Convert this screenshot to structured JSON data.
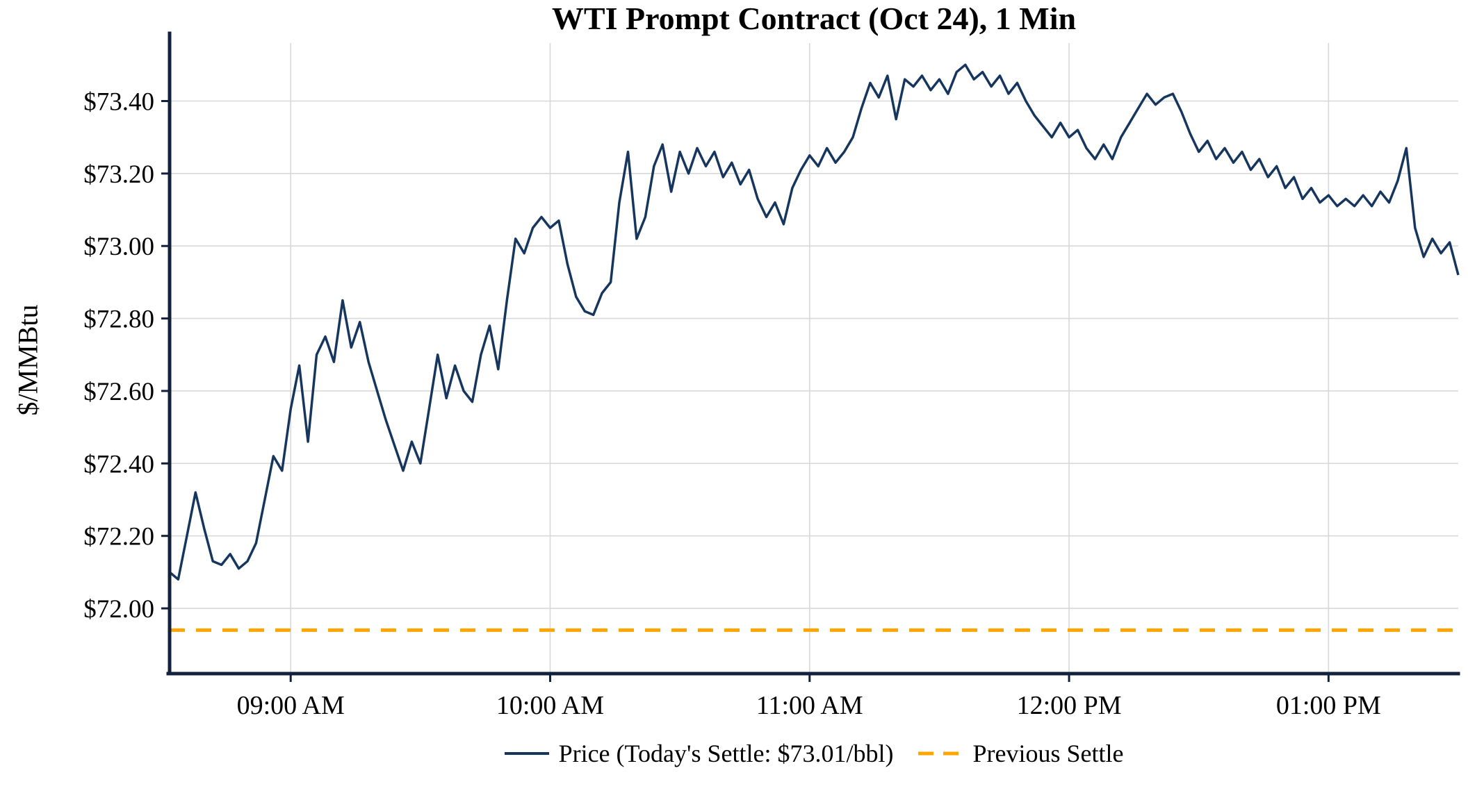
{
  "figure": {
    "title": "WTI Prompt Contract (Oct 24), 1 Min"
  },
  "legend": {
    "price": "Price (Today's Settle: $73.01/bbl)",
    "previous_settle": "Previous Settle"
  },
  "colors": {
    "price_line": "#17365d",
    "previous_settle_line": "#ffa500",
    "grid": "#d8d8d8",
    "axis": "#14213d",
    "text": "#000000",
    "background": "#ffffff"
  },
  "chart_data": {
    "type": "line",
    "title": "WTI Prompt Contract (Oct 24), 1 Min",
    "xlabel": "",
    "ylabel": "$/MMBtu",
    "x_unit": "time-of-day",
    "x_start_time": "08:32",
    "x_step_minutes": 2,
    "x_ticks": [
      {
        "time": "09:00",
        "label": "09:00 AM"
      },
      {
        "time": "10:00",
        "label": "10:00 AM"
      },
      {
        "time": "11:00",
        "label": "11:00 AM"
      },
      {
        "time": "12:00",
        "label": "12:00 PM"
      },
      {
        "time": "13:00",
        "label": "01:00 PM"
      }
    ],
    "y_ticks": [
      {
        "value": 72.0,
        "label": "$72.00"
      },
      {
        "value": 72.2,
        "label": "$72.20"
      },
      {
        "value": 72.4,
        "label": "$72.40"
      },
      {
        "value": 72.6,
        "label": "$72.60"
      },
      {
        "value": 72.8,
        "label": "$72.80"
      },
      {
        "value": 73.0,
        "label": "$73.00"
      },
      {
        "value": 73.2,
        "label": "$73.20"
      },
      {
        "value": 73.4,
        "label": "$73.40"
      }
    ],
    "ylim": [
      71.82,
      73.56
    ],
    "grid": true,
    "legend_position": "bottom",
    "todays_settle": "$73.01/bbl",
    "previous_settle": 71.94,
    "series": [
      {
        "name": "Price (Today's Settle: $73.01/bbl)",
        "type": "line",
        "line_style": "solid",
        "color": "#17365d",
        "values": [
          72.1,
          72.08,
          72.2,
          72.32,
          72.22,
          72.13,
          72.12,
          72.15,
          72.11,
          72.13,
          72.18,
          72.3,
          72.42,
          72.38,
          72.55,
          72.67,
          72.46,
          72.7,
          72.75,
          72.68,
          72.85,
          72.72,
          72.79,
          72.68,
          72.6,
          72.52,
          72.45,
          72.38,
          72.46,
          72.4,
          72.55,
          72.7,
          72.58,
          72.67,
          72.6,
          72.57,
          72.7,
          72.78,
          72.66,
          72.85,
          73.02,
          72.98,
          73.05,
          73.08,
          73.05,
          73.07,
          72.95,
          72.86,
          72.82,
          72.81,
          72.87,
          72.9,
          73.12,
          73.26,
          73.02,
          73.08,
          73.22,
          73.28,
          73.15,
          73.26,
          73.2,
          73.27,
          73.22,
          73.26,
          73.19,
          73.23,
          73.17,
          73.21,
          73.13,
          73.08,
          73.12,
          73.06,
          73.16,
          73.21,
          73.25,
          73.22,
          73.27,
          73.23,
          73.26,
          73.3,
          73.38,
          73.45,
          73.41,
          73.47,
          73.35,
          73.46,
          73.44,
          73.47,
          73.43,
          73.46,
          73.42,
          73.48,
          73.5,
          73.46,
          73.48,
          73.44,
          73.47,
          73.42,
          73.45,
          73.4,
          73.36,
          73.33,
          73.3,
          73.34,
          73.3,
          73.32,
          73.27,
          73.24,
          73.28,
          73.24,
          73.3,
          73.34,
          73.38,
          73.42,
          73.39,
          73.41,
          73.42,
          73.37,
          73.31,
          73.26,
          73.29,
          73.24,
          73.27,
          73.23,
          73.26,
          73.21,
          73.24,
          73.19,
          73.22,
          73.16,
          73.19,
          73.13,
          73.16,
          73.12,
          73.14,
          73.11,
          73.13,
          73.11,
          73.14,
          73.11,
          73.15,
          73.12,
          73.18,
          73.27,
          73.05,
          72.97,
          73.02,
          72.98,
          73.01,
          72.92
        ]
      },
      {
        "name": "Previous Settle",
        "type": "hline",
        "line_style": "dashed",
        "color": "#ffa500",
        "value": 71.94
      }
    ]
  }
}
